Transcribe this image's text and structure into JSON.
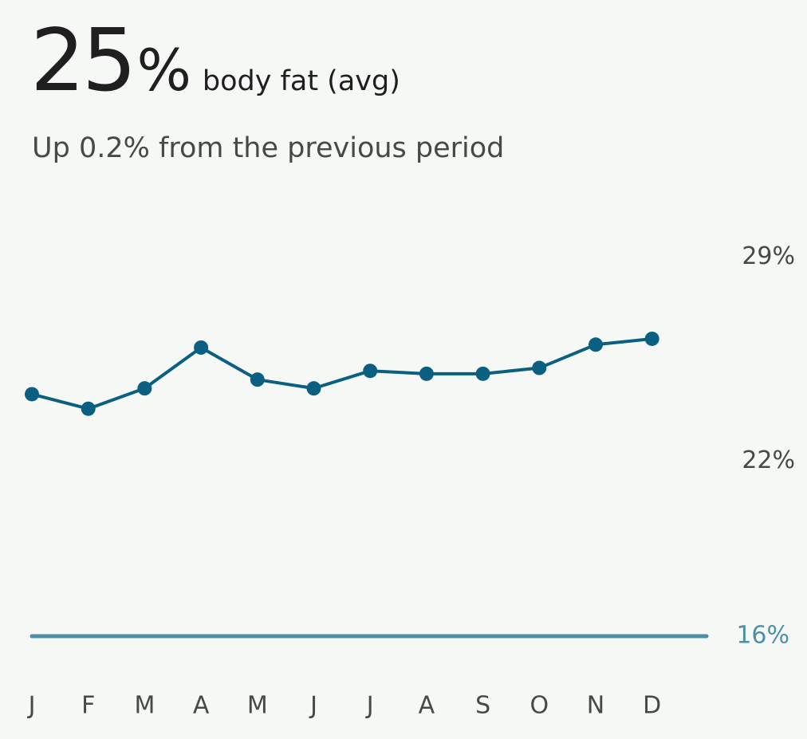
{
  "header": {
    "value": "25",
    "unit": "%",
    "label": "body fat (avg)",
    "subtitle": "Up 0.2% from the previous period"
  },
  "chart_data": {
    "type": "line",
    "categories": [
      "J",
      "F",
      "M",
      "A",
      "M",
      "J",
      "J",
      "A",
      "S",
      "O",
      "N",
      "D"
    ],
    "values": [
      24.3,
      23.8,
      24.5,
      25.9,
      24.8,
      24.5,
      25.1,
      25.0,
      25.0,
      25.2,
      26.0,
      26.2
    ],
    "color": "#0b5f80",
    "ylim": [
      16,
      30
    ],
    "yticks": [
      {
        "value": 29,
        "label": "29%"
      },
      {
        "value": 22,
        "label": "22%"
      }
    ],
    "target": {
      "value": 16,
      "label": "16%",
      "color": "#4e8fa6"
    },
    "grid": false
  }
}
